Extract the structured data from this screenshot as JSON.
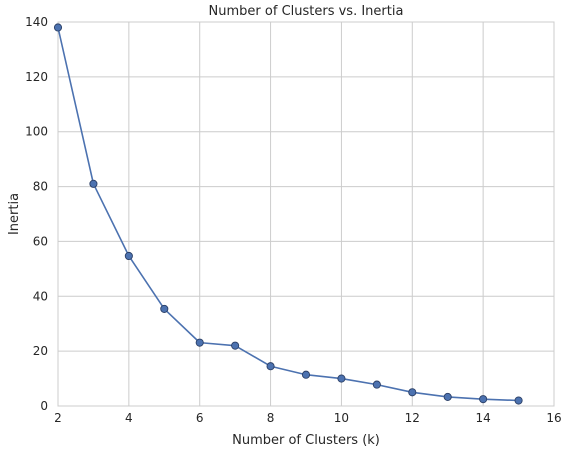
{
  "chart_data": {
    "type": "line",
    "title": "Number of Clusters vs. Inertia",
    "xlabel": "Number of Clusters (k)",
    "ylabel": "Inertia",
    "xlim": [
      2,
      16
    ],
    "ylim": [
      0,
      140
    ],
    "xticks": [
      2,
      4,
      6,
      8,
      10,
      12,
      14,
      16
    ],
    "yticks": [
      0,
      20,
      40,
      60,
      80,
      100,
      120,
      140
    ],
    "grid": true,
    "series": [
      {
        "x": [
          2,
          3,
          4,
          5,
          6,
          7,
          8,
          9,
          10,
          11,
          12,
          13,
          14,
          15
        ],
        "values": [
          138.0,
          81.0,
          54.7,
          35.4,
          23.1,
          22.0,
          14.5,
          11.4,
          10.0,
          7.8,
          5.0,
          3.3,
          2.5,
          2.0
        ],
        "color": "#4c72b0",
        "marker": "circle"
      }
    ],
    "colors": {
      "line": "#4c72b0",
      "marker_fill": "#4c72b0",
      "marker_edge": "#2b3f66",
      "grid": "#cccccc",
      "text": "#262626"
    }
  }
}
